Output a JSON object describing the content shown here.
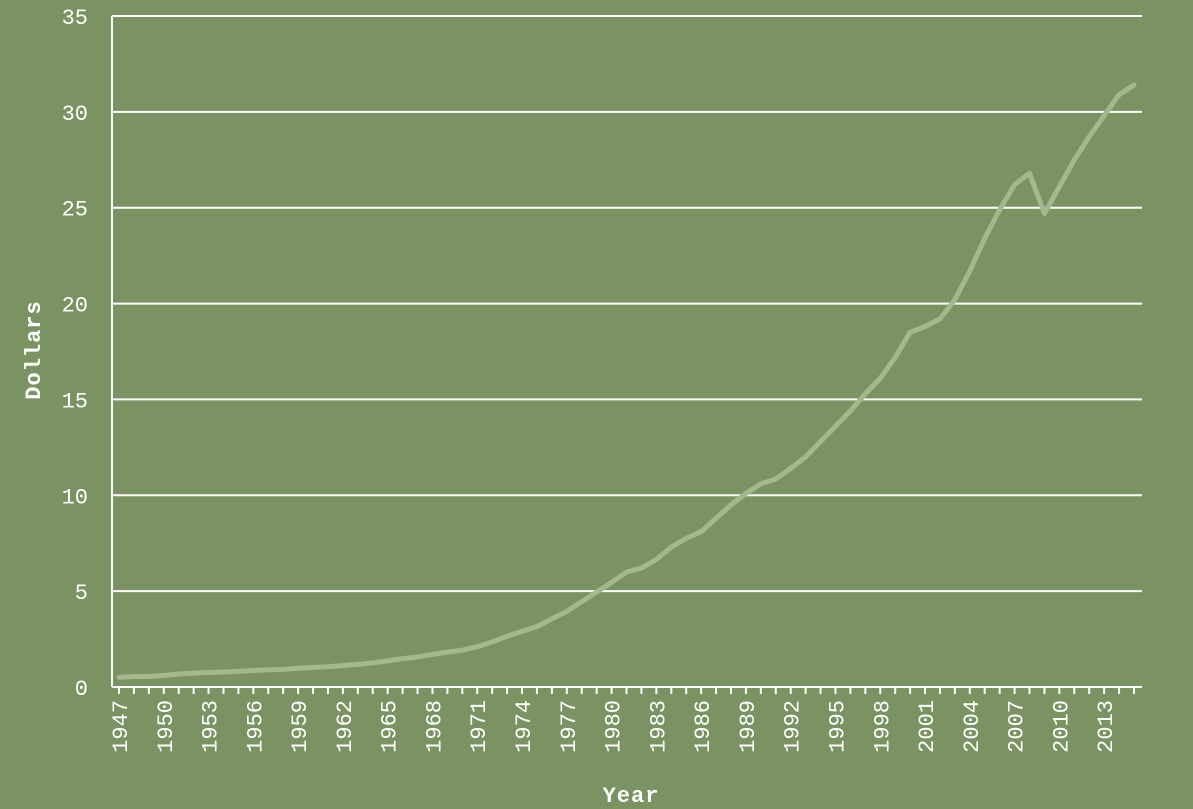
{
  "colors": {
    "background": "#7b9263",
    "grid": "#ffffff",
    "text": "#ffffff",
    "line": "#a4b88e"
  },
  "chart_data": {
    "type": "line",
    "title": "",
    "xlabel": "Year",
    "ylabel": "Dollars",
    "xlim": [
      1947,
      2015
    ],
    "ylim": [
      0,
      35
    ],
    "yticks": [
      0,
      5,
      10,
      15,
      20,
      25,
      30,
      35
    ],
    "xticks": [
      1947,
      1950,
      1953,
      1956,
      1959,
      1962,
      1965,
      1968,
      1971,
      1974,
      1977,
      1980,
      1983,
      1986,
      1989,
      1992,
      1995,
      1998,
      2001,
      2004,
      2007,
      2010,
      2013
    ],
    "grid": true,
    "legend": "none",
    "series": [
      {
        "x": [
          1947,
          1948,
          1949,
          1950,
          1951,
          1952,
          1953,
          1954,
          1955,
          1956,
          1957,
          1958,
          1959,
          1960,
          1961,
          1962,
          1963,
          1964,
          1965,
          1966,
          1967,
          1968,
          1969,
          1970,
          1971,
          1972,
          1973,
          1974,
          1975,
          1976,
          1977,
          1978,
          1979,
          1980,
          1981,
          1982,
          1983,
          1984,
          1985,
          1986,
          1987,
          1988,
          1989,
          1990,
          1991,
          1992,
          1993,
          1994,
          1995,
          1996,
          1997,
          1998,
          1999,
          2000,
          2001,
          2002,
          2003,
          2004,
          2005,
          2006,
          2007,
          2008,
          2009,
          2010,
          2011,
          2012,
          2013,
          2014,
          2015
        ],
        "values": [
          0.5,
          0.55,
          0.55,
          0.6,
          0.68,
          0.72,
          0.76,
          0.78,
          0.82,
          0.86,
          0.9,
          0.92,
          0.98,
          1.02,
          1.06,
          1.12,
          1.18,
          1.26,
          1.36,
          1.48,
          1.56,
          1.7,
          1.82,
          1.92,
          2.1,
          2.35,
          2.65,
          2.9,
          3.15,
          3.55,
          3.95,
          4.45,
          4.95,
          5.45,
          6.0,
          6.2,
          6.65,
          7.3,
          7.75,
          8.1,
          8.8,
          9.5,
          10.1,
          10.6,
          10.85,
          11.4,
          12.0,
          12.8,
          13.6,
          14.4,
          15.3,
          16.1,
          17.2,
          18.5,
          18.8,
          19.2,
          20.2,
          21.7,
          23.4,
          24.9,
          26.2,
          26.8,
          24.7,
          26.1,
          27.5,
          28.7,
          29.8,
          30.9,
          31.4
        ]
      }
    ]
  }
}
